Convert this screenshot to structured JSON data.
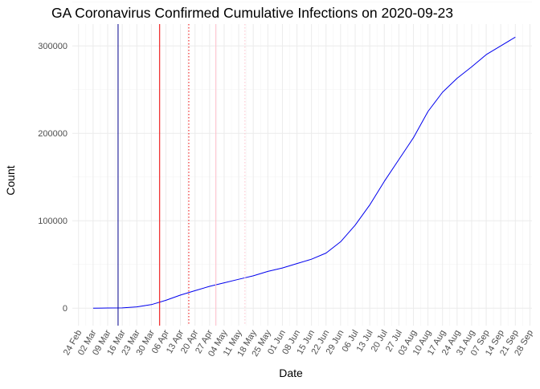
{
  "chart_data": {
    "type": "line",
    "title": "GA Coronavirus Confirmed Cumulative Infections on 2020-09-23",
    "xlabel": "Date",
    "ylabel": "Count",
    "xlim": [
      "2020-02-21",
      "2020-09-29"
    ],
    "ylim": [
      -20000,
      325000
    ],
    "x_ticks": [
      "2020-02-24",
      "2020-03-02",
      "2020-03-09",
      "2020-03-16",
      "2020-03-23",
      "2020-03-30",
      "2020-04-06",
      "2020-04-13",
      "2020-04-20",
      "2020-04-27",
      "2020-05-04",
      "2020-05-11",
      "2020-05-18",
      "2020-05-25",
      "2020-06-01",
      "2020-06-08",
      "2020-06-15",
      "2020-06-22",
      "2020-06-29",
      "2020-07-06",
      "2020-07-13",
      "2020-07-20",
      "2020-07-27",
      "2020-08-03",
      "2020-08-10",
      "2020-08-17",
      "2020-08-24",
      "2020-08-31",
      "2020-09-07",
      "2020-09-14",
      "2020-09-21",
      "2020-09-28"
    ],
    "x_tick_labels": [
      "24 Feb",
      "02 Mar",
      "09 Mar",
      "16 Mar",
      "23 Mar",
      "30 Mar",
      "06 Apr",
      "13 Apr",
      "20 Apr",
      "27 Apr",
      "04 May",
      "11 May",
      "18 May",
      "25 May",
      "01 Jun",
      "08 Jun",
      "15 Jun",
      "22 Jun",
      "29 Jun",
      "06 Jul",
      "13 Jul",
      "20 Jul",
      "27 Jul",
      "03 Aug",
      "10 Aug",
      "17 Aug",
      "24 Aug",
      "31 Aug",
      "07 Sep",
      "14 Sep",
      "21 Sep",
      "28 Sep"
    ],
    "y_ticks": [
      0,
      100000,
      200000,
      300000
    ],
    "y_tick_labels": [
      "0",
      "100000",
      "200000",
      "300000"
    ],
    "grid": true,
    "series": [
      {
        "color": "#0000ee",
        "x": [
          "2020-03-02",
          "2020-03-09",
          "2020-03-16",
          "2020-03-23",
          "2020-03-30",
          "2020-04-06",
          "2020-04-13",
          "2020-04-20",
          "2020-04-27",
          "2020-05-04",
          "2020-05-11",
          "2020-05-18",
          "2020-05-25",
          "2020-06-01",
          "2020-06-08",
          "2020-06-15",
          "2020-06-22",
          "2020-06-29",
          "2020-07-06",
          "2020-07-13",
          "2020-07-20",
          "2020-07-27",
          "2020-08-03",
          "2020-08-10",
          "2020-08-17",
          "2020-08-24",
          "2020-08-31",
          "2020-09-07",
          "2020-09-14",
          "2020-09-21"
        ],
        "y": [
          0,
          200,
          300,
          1500,
          4000,
          9000,
          15000,
          20000,
          25000,
          29000,
          33000,
          37000,
          42000,
          46000,
          51000,
          56000,
          63000,
          76000,
          95000,
          118000,
          145000,
          170000,
          195000,
          225000,
          247000,
          263000,
          276000,
          290000,
          300000,
          310000
        ]
      }
    ],
    "vlines": [
      {
        "x": "2020-03-14",
        "color": "#00008b",
        "style": "solid"
      },
      {
        "x": "2020-04-03",
        "color": "#ee0000",
        "style": "solid"
      },
      {
        "x": "2020-04-17",
        "color": "#ee0000",
        "style": "dotted"
      },
      {
        "x": "2020-04-30",
        "color": "#ffc0cb",
        "style": "solid"
      },
      {
        "x": "2020-05-14",
        "color": "#ffc0cb",
        "style": "dotted"
      }
    ]
  }
}
